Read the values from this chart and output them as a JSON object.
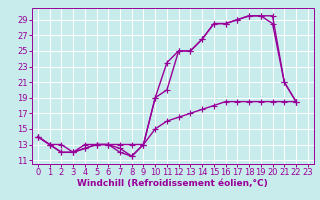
{
  "background_color": "#c8ecec",
  "grid_color": "#b0d0d0",
  "line_color": "#990099",
  "marker": "+",
  "markersize": 4,
  "linewidth": 1.0,
  "xlabel": "Windchill (Refroidissement éolien,°C)",
  "xlabel_fontsize": 6.5,
  "tick_fontsize": 6.0,
  "xlim": [
    -0.5,
    23.5
  ],
  "ylim": [
    10.5,
    30.5
  ],
  "yticks": [
    11,
    13,
    15,
    17,
    19,
    21,
    23,
    25,
    27,
    29
  ],
  "xticks": [
    0,
    1,
    2,
    3,
    4,
    5,
    6,
    7,
    8,
    9,
    10,
    11,
    12,
    13,
    14,
    15,
    16,
    17,
    18,
    19,
    20,
    21,
    22,
    23
  ],
  "lines": [
    {
      "x": [
        0,
        1,
        2,
        3,
        4,
        5,
        6,
        7,
        8,
        9,
        10,
        11,
        12,
        13,
        14,
        15,
        16,
        17,
        18,
        19,
        20,
        21,
        22
      ],
      "y": [
        14,
        13,
        13,
        12,
        13,
        13,
        13,
        12,
        11.5,
        13,
        19,
        23.5,
        25,
        25,
        26.5,
        28.5,
        28.5,
        29,
        29.5,
        29.5,
        29.5,
        21,
        18.5
      ]
    },
    {
      "x": [
        0,
        1,
        2,
        3,
        4,
        5,
        6,
        7,
        8,
        9,
        10,
        11,
        12,
        13,
        14,
        15,
        16,
        17,
        18,
        19,
        20,
        21,
        22
      ],
      "y": [
        14,
        13,
        12,
        12,
        12.5,
        13,
        13,
        13,
        13,
        13,
        19,
        20,
        25,
        25,
        26.5,
        28.5,
        28.5,
        29,
        29.5,
        29.5,
        28.5,
        21,
        18.5
      ]
    },
    {
      "x": [
        0,
        1,
        2,
        3,
        4,
        5,
        6,
        7,
        8,
        9,
        10,
        11,
        12,
        13,
        14,
        15,
        16,
        17,
        18,
        19,
        20,
        21,
        22
      ],
      "y": [
        14,
        13,
        12,
        12,
        12.5,
        13,
        13,
        12.5,
        11.5,
        13,
        15,
        16,
        16.5,
        17,
        17.5,
        18,
        18.5,
        18.5,
        18.5,
        18.5,
        18.5,
        18.5,
        18.5
      ]
    }
  ]
}
